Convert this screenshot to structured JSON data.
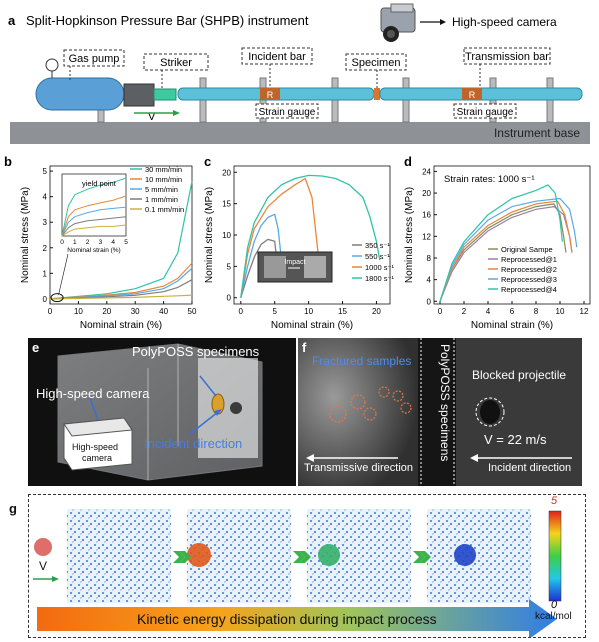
{
  "panel_a": {
    "letter": "a",
    "title": "Split-Hopkinson Pressure Bar (SHPB) instrument",
    "camera_label": "High-speed camera",
    "gas_pump": "Gas pump",
    "striker": "Striker",
    "incident_bar": "Incident bar",
    "specimen": "Specimen",
    "transmission_bar": "Transmission bar",
    "strain_gauge_1": "Strain gauge",
    "strain_gauge_2": "Strain gauge",
    "gauge_mark_1": "R",
    "gauge_mark_2": "R",
    "velocity": "V",
    "base": "Instrument base"
  },
  "panel_e": {
    "letter": "e",
    "specimens_label": "PolyPOSS specimens",
    "camera_label": "High-speed camera",
    "camera_box_line1": "High-speed",
    "camera_box_line2": "camera",
    "incident_label": "Incident direction"
  },
  "panel_f": {
    "letter": "f",
    "fractured": "Fractured samples",
    "specimens_vertical": "PolyPOSS specimens",
    "blocked": "Blocked projectile",
    "velocity": "V = 22 m/s",
    "transmissive": "Transmissive direction",
    "incident": "Incident direction"
  },
  "panel_g": {
    "letter": "g",
    "velocity": "V",
    "caption": "Kinetic energy dissipation during impact process",
    "colorbar_max": "5",
    "colorbar_min": "0",
    "colorbar_unit": "kcal/mol"
  },
  "chart_data": [
    {
      "id": "b",
      "type": "line",
      "letter": "b",
      "xlabel": "Nominal strain (%)",
      "ylabel": "Nominal stress (MPa)",
      "xlim": [
        0,
        50
      ],
      "ylim": [
        -0.2,
        5.2
      ],
      "xticks": [
        0,
        10,
        20,
        30,
        40,
        50
      ],
      "yticks": [
        0,
        1,
        2,
        3,
        4,
        5
      ],
      "grid": false,
      "legend_position": "top-right",
      "series": [
        {
          "name": "30 mm/min",
          "color": "#2ec4a5",
          "x": [
            0,
            5,
            10,
            20,
            30,
            40,
            45,
            50
          ],
          "y": [
            0,
            0.05,
            0.1,
            0.2,
            0.4,
            0.8,
            1.8,
            4.6
          ]
        },
        {
          "name": "10 mm/min",
          "color": "#e8873a",
          "x": [
            0,
            5,
            10,
            20,
            30,
            40,
            45,
            50
          ],
          "y": [
            0,
            0.04,
            0.08,
            0.15,
            0.25,
            0.5,
            0.8,
            1.4
          ]
        },
        {
          "name": "5 mm/min",
          "color": "#5aa9e6",
          "x": [
            0,
            5,
            10,
            20,
            30,
            40,
            45,
            50
          ],
          "y": [
            0,
            0.03,
            0.06,
            0.12,
            0.2,
            0.4,
            0.7,
            1.2
          ]
        },
        {
          "name": "1 mm/min",
          "color": "#7d7d7d",
          "x": [
            0,
            5,
            10,
            20,
            30,
            40,
            45,
            50
          ],
          "y": [
            0,
            0.02,
            0.04,
            0.08,
            0.14,
            0.28,
            0.45,
            0.75
          ]
        },
        {
          "name": "0.1 mm/min",
          "color": "#c9b23a",
          "x": [
            0,
            5,
            10,
            20,
            30,
            40,
            45,
            50
          ],
          "y": [
            0,
            0.01,
            0.02,
            0.04,
            0.06,
            0.1,
            0.12,
            0.15
          ]
        }
      ],
      "inset": {
        "annotation": "yield point",
        "xlabel": "Nominal strain (%)",
        "xlim": [
          0,
          5
        ],
        "ylim": [
          0,
          0.45
        ],
        "xticks": [
          0,
          1,
          2,
          3,
          4,
          5
        ],
        "series": [
          {
            "name": "30 mm/min",
            "color": "#2ec4a5",
            "x": [
              0,
              0.5,
              1,
              2,
              3,
              4,
              5
            ],
            "y": [
              0,
              0.22,
              0.3,
              0.34,
              0.37,
              0.39,
              0.42
            ]
          },
          {
            "name": "10 mm/min",
            "color": "#e8873a",
            "x": [
              0,
              0.5,
              1,
              2,
              3,
              4,
              5
            ],
            "y": [
              0,
              0.14,
              0.19,
              0.22,
              0.24,
              0.26,
              0.29
            ]
          },
          {
            "name": "5 mm/min",
            "color": "#5aa9e6",
            "x": [
              0,
              0.5,
              1,
              2,
              3,
              4,
              5
            ],
            "y": [
              0,
              0.1,
              0.14,
              0.17,
              0.19,
              0.2,
              0.21
            ]
          },
          {
            "name": "1 mm/min",
            "color": "#7d7d7d",
            "x": [
              0,
              0.5,
              1,
              2,
              3,
              4,
              5
            ],
            "y": [
              0,
              0.06,
              0.09,
              0.11,
              0.12,
              0.13,
              0.14
            ]
          },
          {
            "name": "0.1 mm/min",
            "color": "#c9b23a",
            "x": [
              0,
              0.5,
              1,
              2,
              3,
              4,
              5
            ],
            "y": [
              0,
              0.03,
              0.05,
              0.06,
              0.07,
              0.07,
              0.08
            ]
          }
        ]
      }
    },
    {
      "id": "c",
      "type": "line",
      "letter": "c",
      "xlabel": "Nominal strain (%)",
      "ylabel": "Nominal stress (MPa)",
      "xlim": [
        -1,
        22
      ],
      "ylim": [
        -1,
        21
      ],
      "xticks": [
        0,
        5,
        10,
        15,
        20
      ],
      "yticks": [
        0,
        5,
        10,
        15,
        20
      ],
      "grid": false,
      "legend_position": "bottom-right",
      "annotation": "Impact",
      "series": [
        {
          "name": "350 s⁻¹",
          "color": "#7d7d7d",
          "x": [
            0,
            1,
            2,
            3,
            4,
            5,
            5.3,
            5.5
          ],
          "y": [
            0,
            3.5,
            6.5,
            8.5,
            9.3,
            9.0,
            6.0,
            4.0
          ]
        },
        {
          "name": "550 s⁻¹",
          "color": "#5aa9e6",
          "x": [
            0,
            1,
            2,
            3,
            4,
            5,
            5.5,
            6.0
          ],
          "y": [
            0,
            5,
            9,
            11.5,
            12.8,
            13.3,
            11,
            6
          ]
        },
        {
          "name": "1000 s⁻¹",
          "color": "#e8873a",
          "x": [
            0,
            1,
            2,
            4,
            6,
            8,
            9.5,
            10.5,
            11,
            11.5
          ],
          "y": [
            0,
            7,
            11,
            14.5,
            16.5,
            18,
            19,
            16,
            11,
            6
          ]
        },
        {
          "name": "1800 s⁻¹",
          "color": "#2ec4a5",
          "x": [
            0,
            1,
            2,
            4,
            6,
            8,
            10,
            12,
            14,
            16,
            18,
            19,
            20,
            20.5
          ],
          "y": [
            0,
            8,
            12,
            16,
            18,
            19,
            19.5,
            19.4,
            19,
            18,
            16,
            13,
            9,
            6
          ]
        }
      ]
    },
    {
      "id": "d",
      "type": "line",
      "letter": "d",
      "xlabel": "Nominal strain (%)",
      "ylabel": "Nominal stress (MPa)",
      "annotation": "Strain rates: 1000 s⁻¹",
      "xlim": [
        -0.5,
        12.5
      ],
      "ylim": [
        -0.5,
        25
      ],
      "xticks": [
        0,
        2,
        4,
        6,
        8,
        10,
        12
      ],
      "yticks": [
        0,
        4,
        8,
        12,
        16,
        20,
        24
      ],
      "grid": false,
      "legend_position": "bottom-right",
      "series": [
        {
          "name": "Original Sampe",
          "color": "#8a8a5a",
          "x": [
            0,
            1,
            2,
            4,
            6,
            8,
            9.5,
            10,
            10.3,
            10.5
          ],
          "y": [
            0,
            6,
            9.5,
            13.5,
            16,
            17.5,
            18,
            16,
            12,
            9
          ]
        },
        {
          "name": "Reprocessed@1",
          "color": "#9a7fa8",
          "x": [
            0,
            1,
            2,
            4,
            6,
            8,
            9.5,
            10.3,
            10.8,
            11
          ],
          "y": [
            0,
            5.5,
            9,
            13,
            15.5,
            17,
            17.5,
            16,
            12,
            9
          ]
        },
        {
          "name": "Reprocessed@2",
          "color": "#e8873a",
          "x": [
            0,
            1,
            2,
            4,
            6,
            8,
            9.8,
            10.4,
            10.8,
            11
          ],
          "y": [
            0,
            6,
            10,
            14,
            16.5,
            18,
            18.5,
            16,
            12,
            9
          ]
        },
        {
          "name": "Reprocessed@3",
          "color": "#5aa9e6",
          "x": [
            0,
            1,
            2,
            4,
            6,
            8,
            10,
            10.8,
            11.2,
            11.4
          ],
          "y": [
            0,
            6.5,
            10.5,
            15,
            17.5,
            18.5,
            19,
            17,
            13,
            10
          ]
        },
        {
          "name": "Reprocessed@4",
          "color": "#2ec4a5",
          "x": [
            0,
            1,
            2,
            4,
            6,
            8,
            9,
            9.6,
            10,
            10.2
          ],
          "y": [
            0,
            7,
            11,
            16,
            19,
            20.5,
            21.5,
            20,
            15,
            11
          ]
        }
      ]
    }
  ]
}
